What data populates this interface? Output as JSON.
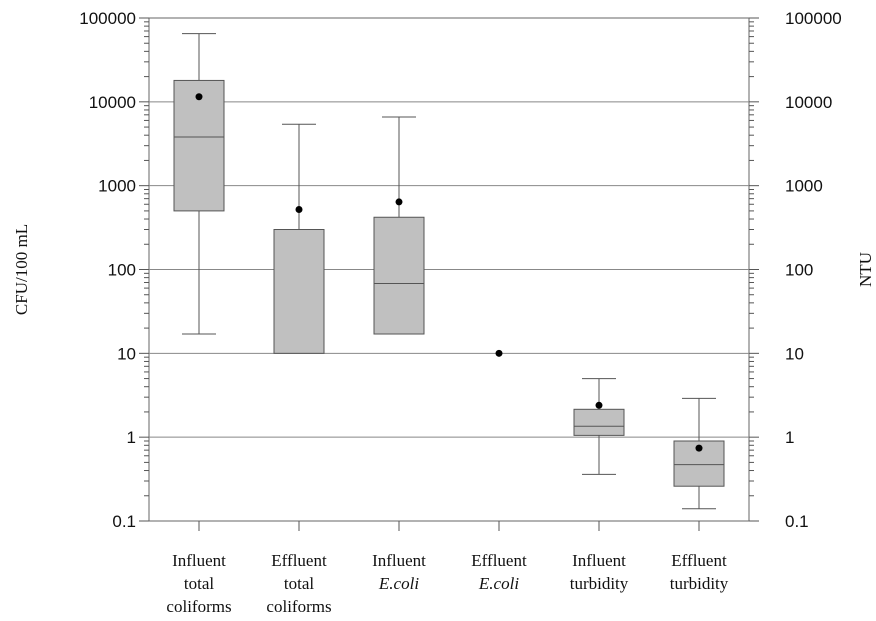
{
  "chart_data": {
    "type": "box",
    "scale": "log",
    "ylim": [
      0.1,
      100000
    ],
    "grid": true,
    "yticks": [
      "0.1",
      "1",
      "10",
      "100",
      "1000",
      "10000",
      "100000"
    ],
    "ylabel_left": "CFU/100 mL",
    "ylabel_right": "NTU",
    "categories": [
      {
        "lines": [
          "Influent",
          "total",
          "coliforms"
        ],
        "italic": [
          false,
          false,
          false
        ]
      },
      {
        "lines": [
          "Effluent",
          "total",
          "coliforms"
        ],
        "italic": [
          false,
          false,
          false
        ]
      },
      {
        "lines": [
          "Influent",
          "E.coli"
        ],
        "italic": [
          false,
          true
        ]
      },
      {
        "lines": [
          "Effluent",
          "E.coli"
        ],
        "italic": [
          false,
          true
        ]
      },
      {
        "lines": [
          "Influent",
          "turbidity"
        ],
        "italic": [
          false,
          false
        ]
      },
      {
        "lines": [
          "Effluent",
          "turbidity"
        ],
        "italic": [
          false,
          false
        ]
      }
    ],
    "boxes": [
      {
        "whisker_low": 17,
        "q1": 500,
        "median": 3800,
        "q3": 18000,
        "whisker_high": 65000,
        "mean": 11500
      },
      {
        "whisker_low": null,
        "q1": 10,
        "median": null,
        "q3": 300,
        "whisker_high": 5400,
        "mean": 520
      },
      {
        "whisker_low": null,
        "q1": 17,
        "median": 68,
        "q3": 420,
        "whisker_high": 6600,
        "mean": 640
      },
      {
        "whisker_low": null,
        "q1": null,
        "median": null,
        "q3": null,
        "whisker_high": null,
        "mean": 10
      },
      {
        "whisker_low": 0.36,
        "q1": 1.05,
        "median": 1.35,
        "q3": 2.15,
        "whisker_high": 5.0,
        "mean": 2.4
      },
      {
        "whisker_low": 0.14,
        "q1": 0.26,
        "median": 0.47,
        "q3": 0.9,
        "whisker_high": 2.9,
        "mean": 0.74
      }
    ]
  }
}
